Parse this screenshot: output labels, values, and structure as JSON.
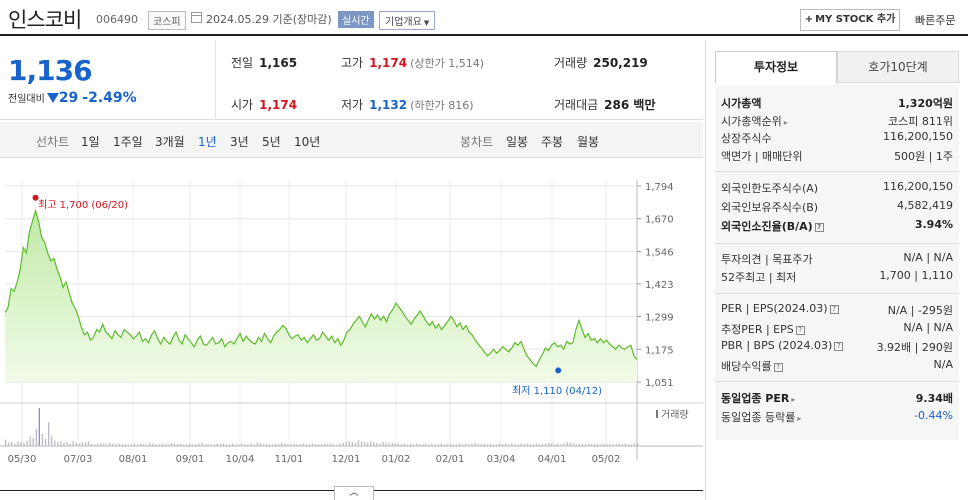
{
  "header": {
    "stock_name": "인스코비",
    "stock_code": "006490",
    "market_badge": "코스피",
    "date_label": "2024.05.29  기준(장마감)",
    "live_badge": "실시간",
    "overview_dropdown": "기업개요",
    "my_stock_button": "MY STOCK 추가",
    "quick_order": "빠른주문"
  },
  "summary": {
    "price": "1,136",
    "change_label": "전일대비",
    "change_amount": "29",
    "change_pct": "-2.49%",
    "prev_close_label": "전일",
    "prev_close": "1,165",
    "high_label": "고가",
    "high": "1,174",
    "upper_limit": "(상한가 1,514)",
    "volume_label": "거래량",
    "volume": "250,219",
    "open_label": "시가",
    "open": "1,174",
    "low_label": "저가",
    "low": "1,132",
    "lower_limit": "(하한가 816)",
    "amount_label": "거래대금",
    "amount": "286 백만"
  },
  "period_bar": {
    "line_chart_label": "선차트",
    "periods": [
      "1일",
      "1주일",
      "3개월",
      "1년",
      "3년",
      "5년",
      "10년"
    ],
    "selected": "1년",
    "candle_label": "봉차트",
    "candles": [
      "일봉",
      "주봉",
      "월봉"
    ]
  },
  "chart_data": {
    "type": "area",
    "yticks": [
      "1,794",
      "1,670",
      "1,546",
      "1,423",
      "1,299",
      "1,175",
      "1,051"
    ],
    "ylim": [
      1051,
      1794
    ],
    "xticks": [
      "05/30",
      "07/03",
      "08/01",
      "09/01",
      "10/04",
      "11/01",
      "12/01",
      "01/02",
      "02/01",
      "03/04",
      "04/01",
      "05/02"
    ],
    "max_annotation": "최고 1,700 (06/20)",
    "min_annotation": "최저 1,110 (04/12)",
    "volume_legend": "거래량",
    "series": [
      {
        "values": [
          1314,
          1334,
          1405,
          1395,
          1430,
          1480,
          1560,
          1540,
          1620,
          1660,
          1700,
          1660,
          1600,
          1580,
          1540,
          1510,
          1520,
          1480,
          1450,
          1410,
          1430,
          1390,
          1350,
          1330,
          1300,
          1260,
          1230,
          1240,
          1210,
          1220,
          1250,
          1240,
          1270,
          1240,
          1230,
          1215,
          1245,
          1230,
          1220,
          1250,
          1240,
          1230,
          1215,
          1225,
          1240,
          1205,
          1215,
          1200,
          1230,
          1245,
          1215,
          1195,
          1220,
          1205,
          1195,
          1220,
          1240,
          1210,
          1195,
          1230,
          1215,
          1200,
          1185,
          1210,
          1225,
          1195,
          1190,
          1205,
          1220,
          1195,
          1200,
          1215,
          1185,
          1200,
          1205,
          1195,
          1215,
          1235,
          1205,
          1225,
          1210,
          1200,
          1195,
          1220,
          1205,
          1235,
          1215,
          1200,
          1225,
          1240,
          1250,
          1265,
          1255,
          1230,
          1215,
          1225,
          1230,
          1210,
          1220,
          1200,
          1215,
          1230,
          1210,
          1215,
          1240,
          1225,
          1210,
          1225,
          1200,
          1215,
          1190,
          1210,
          1240,
          1250,
          1270,
          1285,
          1300,
          1280,
          1260,
          1285,
          1310,
          1290,
          1305,
          1285,
          1300,
          1280,
          1310,
          1325,
          1350,
          1335,
          1320,
          1300,
          1285,
          1270,
          1290,
          1305,
          1320,
          1300,
          1280,
          1265,
          1280,
          1255,
          1270,
          1250,
          1265,
          1280,
          1300,
          1285,
          1260,
          1275,
          1250,
          1265,
          1240,
          1230,
          1210,
          1195,
          1180,
          1165,
          1150,
          1160,
          1175,
          1160,
          1170,
          1185,
          1175,
          1165,
          1180,
          1200,
          1190,
          1205,
          1175,
          1150,
          1135,
          1120,
          1110,
          1135,
          1155,
          1180,
          1170,
          1190,
          1200,
          1185,
          1190,
          1175,
          1205,
          1195,
          1200,
          1250,
          1285,
          1250,
          1220,
          1235,
          1210,
          1215,
          1200,
          1215,
          1200,
          1210,
          1195,
          1185,
          1175,
          1190,
          1180,
          1175,
          1185,
          1190,
          1150,
          1136
        ]
      }
    ],
    "volume_values": [
      8,
      4,
      5,
      3,
      6,
      5,
      4,
      7,
      12,
      10,
      22,
      48,
      15,
      9,
      30,
      12,
      7,
      5,
      6,
      4,
      5,
      3,
      6,
      4,
      3,
      5,
      4,
      6,
      3,
      2,
      3,
      4,
      3,
      2,
      4,
      3,
      2,
      3,
      2,
      3,
      2,
      2,
      3,
      2,
      3,
      2,
      2,
      4,
      3,
      2,
      2,
      3,
      2,
      2,
      4,
      3,
      2,
      3,
      2,
      2,
      3,
      2,
      2,
      3,
      4,
      2,
      3,
      2,
      2,
      3,
      2,
      3,
      2,
      2,
      3,
      2,
      2,
      3,
      2,
      2,
      3,
      2,
      4,
      3,
      2,
      3,
      2,
      2,
      3,
      2,
      4,
      3,
      2,
      2,
      3,
      2,
      2,
      3,
      2,
      2,
      3,
      2,
      2,
      2,
      3,
      2,
      3,
      2,
      2,
      3,
      4,
      5,
      6,
      5,
      4,
      7,
      6,
      5,
      4,
      6,
      5,
      4,
      3,
      5,
      4,
      3,
      4,
      3,
      3,
      2,
      3,
      2,
      3,
      2,
      3,
      2,
      2,
      3,
      2,
      3,
      2,
      2,
      3,
      2,
      2,
      3,
      2,
      2,
      3,
      2,
      3,
      2,
      3,
      4,
      3,
      2,
      3,
      2,
      3,
      2,
      2,
      3,
      2,
      3,
      2,
      3,
      2,
      2,
      3,
      2,
      3,
      2,
      2,
      3,
      2,
      2,
      3,
      4,
      3,
      2,
      3,
      2,
      3,
      5,
      4,
      3,
      2,
      2,
      3,
      2,
      3,
      2,
      3,
      2,
      2,
      3,
      2,
      3,
      2,
      2,
      3,
      2,
      3,
      2,
      2,
      3,
      3
    ]
  },
  "sidebar": {
    "tab_active": "투자정보",
    "tab_inactive": "호가10단계",
    "rows": [
      {
        "label": "시가총액",
        "value": "1,320억원",
        "bold": true
      },
      {
        "label": "시가총액순위",
        "value": "코스피 811위",
        "arrow": true
      },
      {
        "label": "상장주식수",
        "value": "116,200,150"
      },
      {
        "label": "액면가 | 매매단위",
        "value": "500원 | 1주"
      },
      {
        "label": "외국인한도주식수(A)",
        "value": "116,200,150"
      },
      {
        "label": "외국인보유주식수(B)",
        "value": "4,582,419"
      },
      {
        "label": "외국인소진율(B/A)",
        "value": "3.94%",
        "bold": true,
        "help": true
      },
      {
        "label": "투자의견 | 목표주가",
        "value": "N/A | N/A"
      },
      {
        "label": "52주최고 | 최저",
        "value": "1,700 | 1,110"
      },
      {
        "label": "PER | EPS(2024.03)",
        "value": "N/A | -295원",
        "help": true
      },
      {
        "label": "추정PER | EPS",
        "value": "N/A | N/A",
        "help": true
      },
      {
        "label": "PBR | BPS (2024.03)",
        "value": "3.92배 | 290원",
        "help": true
      },
      {
        "label": "배당수익률",
        "value": "N/A",
        "help": true
      },
      {
        "label": "동일업종 PER",
        "value": "9.34배",
        "bold": true,
        "arrow": true
      },
      {
        "label": "동일업종 등락률",
        "value": "-0.44%",
        "arrow": true,
        "neg": true
      }
    ]
  }
}
